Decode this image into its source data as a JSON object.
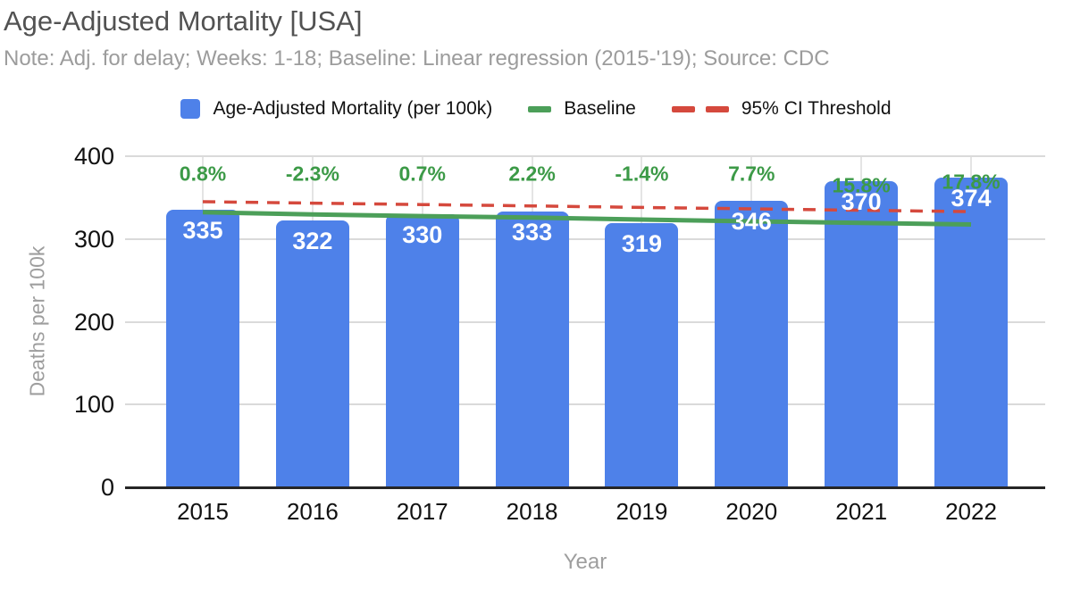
{
  "header": {
    "title": "Age-Adjusted Mortality [USA]",
    "note": "Note: Adj. for delay; Weeks: 1-18; Baseline: Linear regression (2015-'19); Source: CDC"
  },
  "chart_data": {
    "type": "bar",
    "title": "Age-Adjusted Mortality [USA]",
    "subtitle": "Note: Adj. for delay; Weeks: 1-18; Baseline: Linear regression (2015-'19); Source: CDC",
    "categories": [
      "2015",
      "2016",
      "2017",
      "2018",
      "2019",
      "2020",
      "2021",
      "2022"
    ],
    "series": [
      {
        "name": "Age-Adjusted Mortality (per 100k)",
        "type": "bar",
        "color": "#4e81e9",
        "values": [
          335,
          322,
          330,
          333,
          319,
          346,
          370,
          374
        ]
      },
      {
        "name": "Baseline",
        "type": "line",
        "color": "#4c9f59",
        "values": [
          332.3,
          329.6,
          327.7,
          325.8,
          323.5,
          321.3,
          319.5,
          317.5
        ]
      },
      {
        "name": "95% CI Threshold",
        "type": "dashed-line",
        "color": "#d5493d",
        "values": [
          345.0,
          343.3,
          341.6,
          339.9,
          338.1,
          336.4,
          334.7,
          333.0
        ]
      }
    ],
    "bar_value_labels": [
      "335",
      "322",
      "330",
      "333",
      "319",
      "346",
      "370",
      "374"
    ],
    "pct_deviation_labels": [
      "0.8%",
      "-2.3%",
      "0.7%",
      "2.2%",
      "-1.4%",
      "7.7%",
      "15.8%",
      "17.8%"
    ],
    "xlabel": "Year",
    "ylabel": "Deaths per 100k",
    "ylim": [
      0,
      400
    ],
    "yticks": [
      0,
      100,
      200,
      300,
      400
    ],
    "legend_position": "top",
    "grid": {
      "horizontal": true,
      "vertical_category_lines": true
    },
    "colors": {
      "bar": "#4e81e9",
      "baseline_line": "#4c9f59",
      "threshold_line": "#d5493d",
      "pct_label": "#3c9a47",
      "value_label": "#ffffff",
      "gridline": "#dadada",
      "vertical_gridline": "#e4e4e4",
      "axis_line": "#262626",
      "title_text": "#525252",
      "note_text": "#9c9c9c",
      "axis_title_text": "#9e9e9e",
      "tick_text": "#111111",
      "legend_text": "#111111"
    }
  }
}
